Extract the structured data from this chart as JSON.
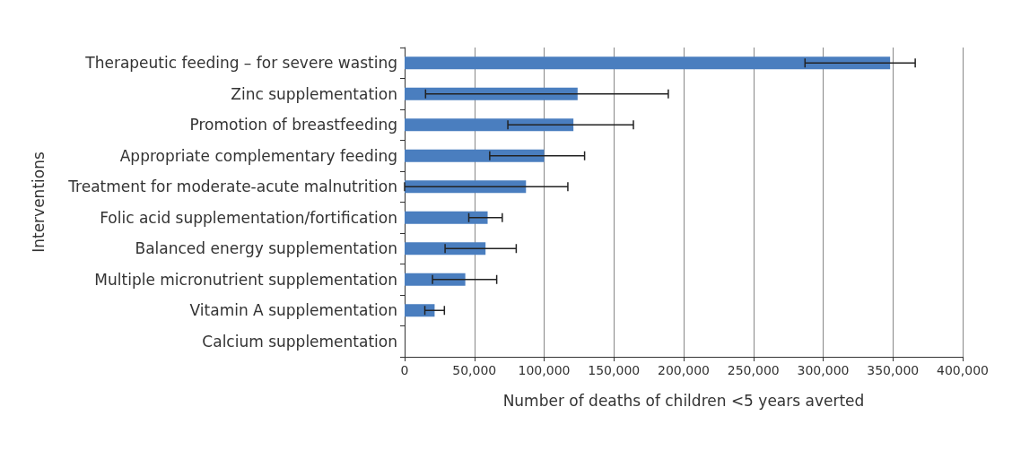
{
  "chart_data": {
    "type": "bar",
    "orientation": "horizontal",
    "xlabel": "Number of deaths of children <5 years averted",
    "ylabel": "Interventions",
    "categories": [
      "Therapeutic feeding – for severe wasting",
      "Zinc supplementation",
      "Promotion of breastfeeding",
      "Appropriate complementary feeding",
      "Treatment for moderate-acute malnutrition",
      "Folic acid supplementation/fortification",
      "Balanced energy supplementation",
      "Multiple micronutrient supplementation",
      "Vitamin A supplementation",
      "Calcium supplementation"
    ],
    "values": [
      348000,
      124000,
      121000,
      100000,
      87000,
      59500,
      58000,
      43500,
      21500,
      null
    ],
    "errors": [
      [
        287000,
        366000
      ],
      [
        15000,
        189000
      ],
      [
        74000,
        164000
      ],
      [
        61000,
        129000
      ],
      [
        0,
        117000
      ],
      [
        46000,
        70000
      ],
      [
        29000,
        80000
      ],
      [
        20000,
        66000
      ],
      [
        14500,
        28500
      ],
      null
    ],
    "color": "#4a7ebf",
    "xlim": [
      0,
      400000
    ],
    "xticks": [
      0,
      {
        "value": 50000,
        "label": "50,000"
      },
      {
        "value": 100000,
        "label": "100,000"
      },
      {
        "value": 150000,
        "label": "150,000"
      },
      {
        "value": 200000,
        "label": "200,000"
      },
      {
        "value": 250000,
        "label": "250,000"
      },
      {
        "value": 300000,
        "label": "300,000"
      },
      {
        "value": 350000,
        "label": "350,000"
      },
      {
        "value": 400000,
        "label": "400,000"
      }
    ],
    "grid": "x"
  }
}
